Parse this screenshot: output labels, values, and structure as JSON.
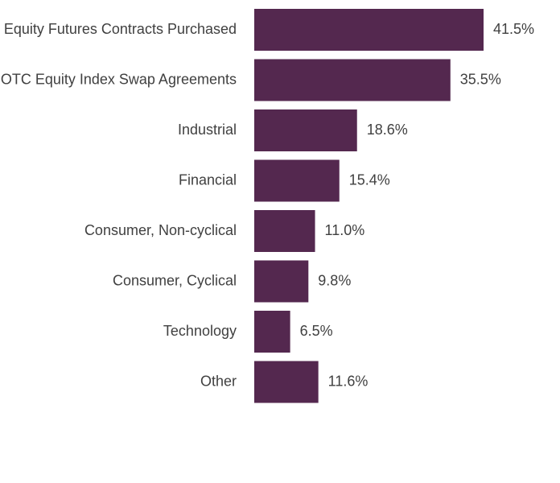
{
  "chart_data": {
    "type": "bar",
    "orientation": "horizontal",
    "categories": [
      "Equity Futures Contracts Purchased",
      "OTC Equity Index Swap Agreements",
      "Industrial",
      "Financial",
      "Consumer, Non-cyclical",
      "Consumer, Cyclical",
      "Technology",
      "Other"
    ],
    "values": [
      41.5,
      35.5,
      18.6,
      15.4,
      11.0,
      9.8,
      6.5,
      11.6
    ],
    "value_labels": [
      "41.5%",
      "35.5%",
      "18.6%",
      "15.4%",
      "11.0%",
      "9.8%",
      "6.5%",
      "11.6%"
    ],
    "color": "#54284f"
  }
}
